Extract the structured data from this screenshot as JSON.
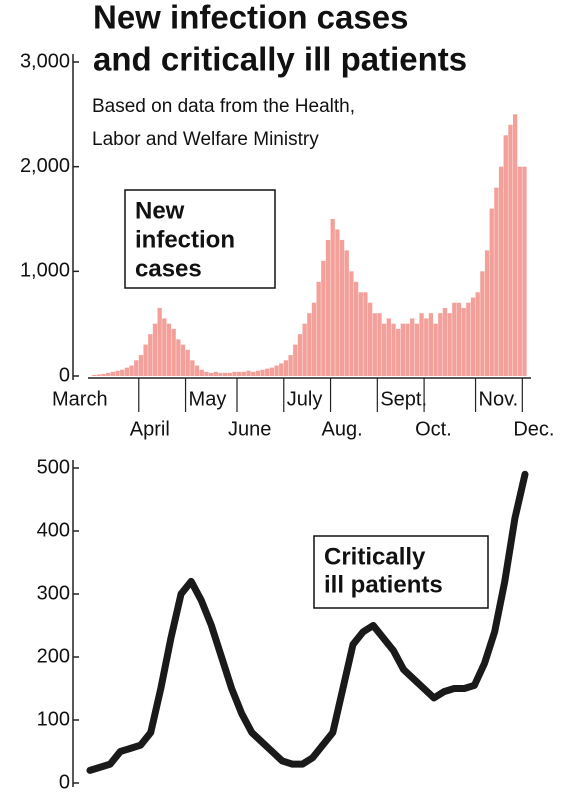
{
  "title": [
    "New infection cases",
    "and critically ill patients"
  ],
  "subtitle": [
    "Based on data from the Health,",
    "Labor and Welfare Ministry"
  ],
  "chart_data": [
    {
      "type": "bar",
      "annotation": [
        "New",
        "infection",
        "cases"
      ],
      "color": "#f4a09a",
      "categories": [
        "March",
        null,
        null,
        null,
        null,
        null,
        null,
        null,
        null,
        null,
        "April",
        null,
        null,
        null,
        null,
        null,
        null,
        null,
        null,
        null,
        "May",
        null,
        null,
        null,
        null,
        null,
        null,
        null,
        null,
        null,
        null,
        "June",
        null,
        null,
        null,
        null,
        null,
        null,
        null,
        null,
        null,
        "July",
        null,
        null,
        null,
        null,
        null,
        null,
        null,
        null,
        null,
        "Aug.",
        null,
        null,
        null,
        null,
        null,
        null,
        null,
        null,
        null,
        "Sept.",
        null,
        null,
        null,
        null,
        null,
        null,
        null,
        null,
        null,
        "Oct.",
        null,
        null,
        null,
        null,
        null,
        null,
        null,
        null,
        null,
        null,
        "Nov.",
        null,
        null,
        null,
        null,
        null,
        null,
        null,
        null,
        null,
        "Dec."
      ],
      "values": [
        10,
        15,
        20,
        30,
        40,
        50,
        60,
        80,
        100,
        150,
        200,
        300,
        400,
        500,
        650,
        550,
        500,
        450,
        350,
        300,
        250,
        150,
        100,
        60,
        40,
        30,
        40,
        30,
        30,
        30,
        40,
        40,
        40,
        50,
        40,
        50,
        60,
        70,
        80,
        100,
        120,
        150,
        200,
        300,
        400,
        500,
        600,
        700,
        900,
        1100,
        1300,
        1500,
        1400,
        1300,
        1200,
        1000,
        900,
        800,
        800,
        700,
        600,
        600,
        500,
        550,
        500,
        450,
        500,
        500,
        550,
        500,
        600,
        550,
        600,
        500,
        600,
        650,
        600,
        700,
        700,
        650,
        700,
        750,
        800,
        1000,
        1200,
        1600,
        1800,
        2000,
        2300,
        2400,
        2500,
        2000,
        2000
      ],
      "ylim": [
        0,
        3000
      ],
      "yticks": [
        0,
        {
          "value": 1000,
          "label": "1,000"
        },
        {
          "value": 2000,
          "label": "2,000"
        },
        {
          "value": 3000,
          "label": "3,000"
        }
      ]
    },
    {
      "type": "line",
      "annotation": [
        "Critically",
        "ill patients"
      ],
      "color": "#1a1a1a",
      "values": [
        20,
        25,
        30,
        50,
        55,
        60,
        80,
        150,
        230,
        300,
        320,
        290,
        250,
        200,
        150,
        110,
        80,
        65,
        50,
        35,
        30,
        30,
        40,
        60,
        80,
        150,
        220,
        240,
        250,
        230,
        210,
        180,
        165,
        150,
        135,
        145,
        150,
        150,
        155,
        190,
        240,
        320,
        420,
        490
      ],
      "ylim": [
        0,
        500
      ],
      "yticks": [
        0,
        100,
        200,
        300,
        400,
        500
      ]
    }
  ]
}
